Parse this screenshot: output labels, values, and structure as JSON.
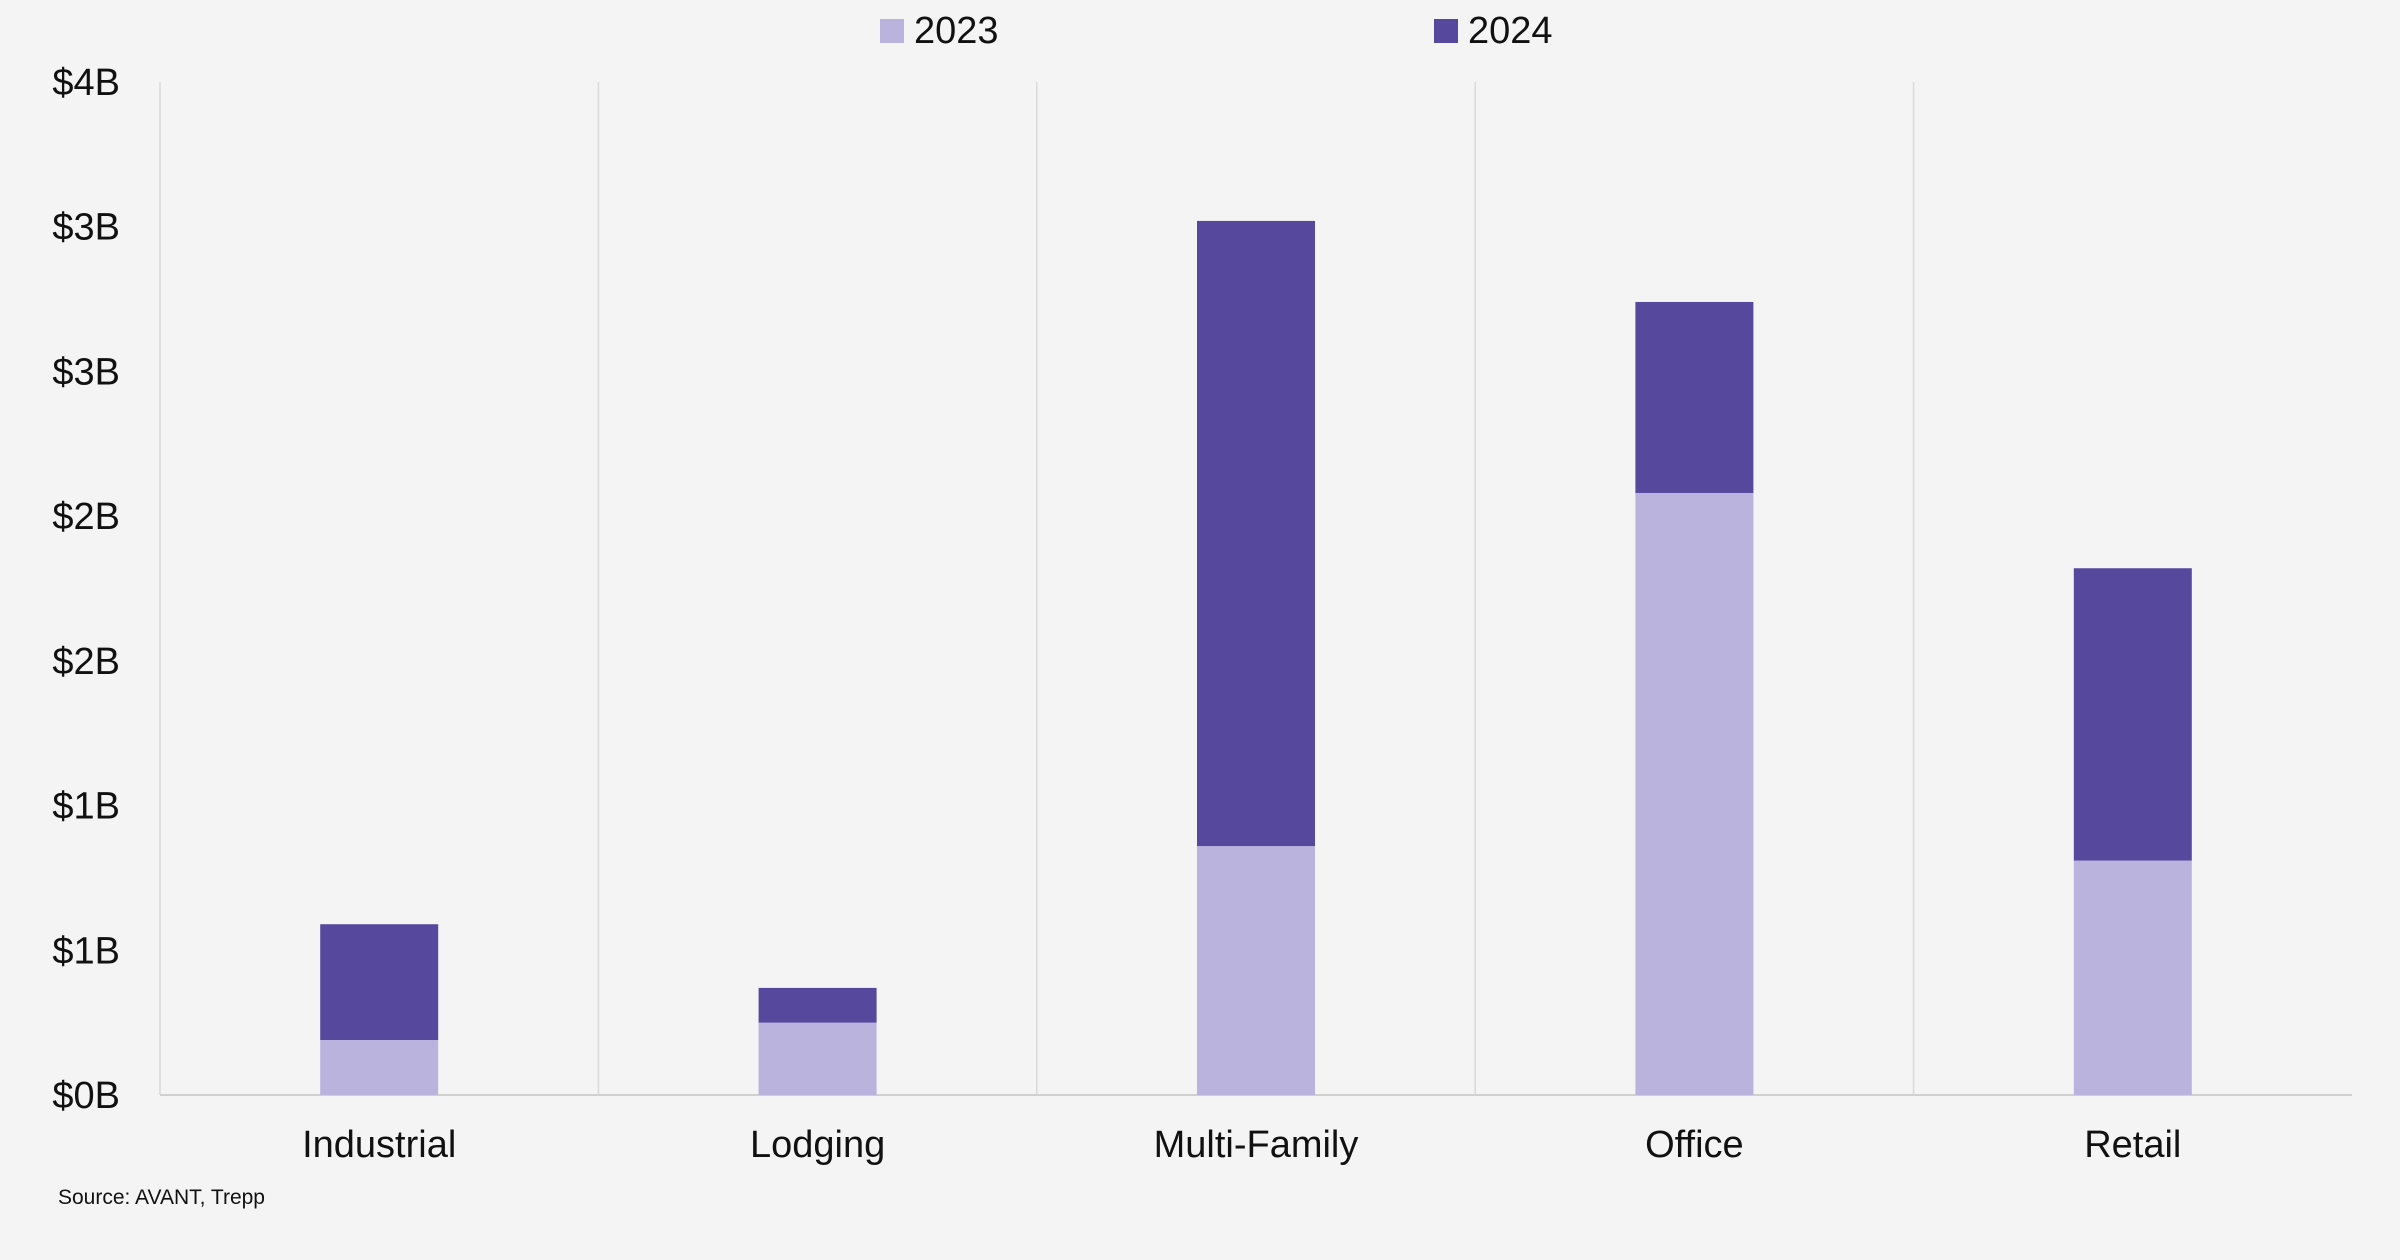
{
  "chart_data": {
    "type": "bar",
    "stacked": true,
    "categories": [
      "Industrial",
      "Lodging",
      "Multi-Family",
      "Office",
      "Retail"
    ],
    "series": [
      {
        "name": "2023",
        "values": [
          0.19,
          0.25,
          0.86,
          2.08,
          0.81
        ],
        "color": "#b9b3dd"
      },
      {
        "name": "2024",
        "values": [
          0.4,
          0.12,
          2.16,
          0.66,
          1.01
        ],
        "color": "#56499d"
      }
    ],
    "y_tick_labels": [
      "$0B",
      "$1B",
      "$1B",
      "$2B",
      "$2B",
      "$3B",
      "$3B",
      "$4B"
    ],
    "ylim": [
      0,
      3.5
    ],
    "grid": "vertical separators between categories",
    "legend_position": "top-center",
    "title": "",
    "xlabel": "",
    "ylabel": ""
  },
  "source": "Source: AVANT, Trepp",
  "colors": {
    "background": "#f4f4f4",
    "gridline": "#d9d9d9",
    "axis": "#d0d0d0"
  }
}
